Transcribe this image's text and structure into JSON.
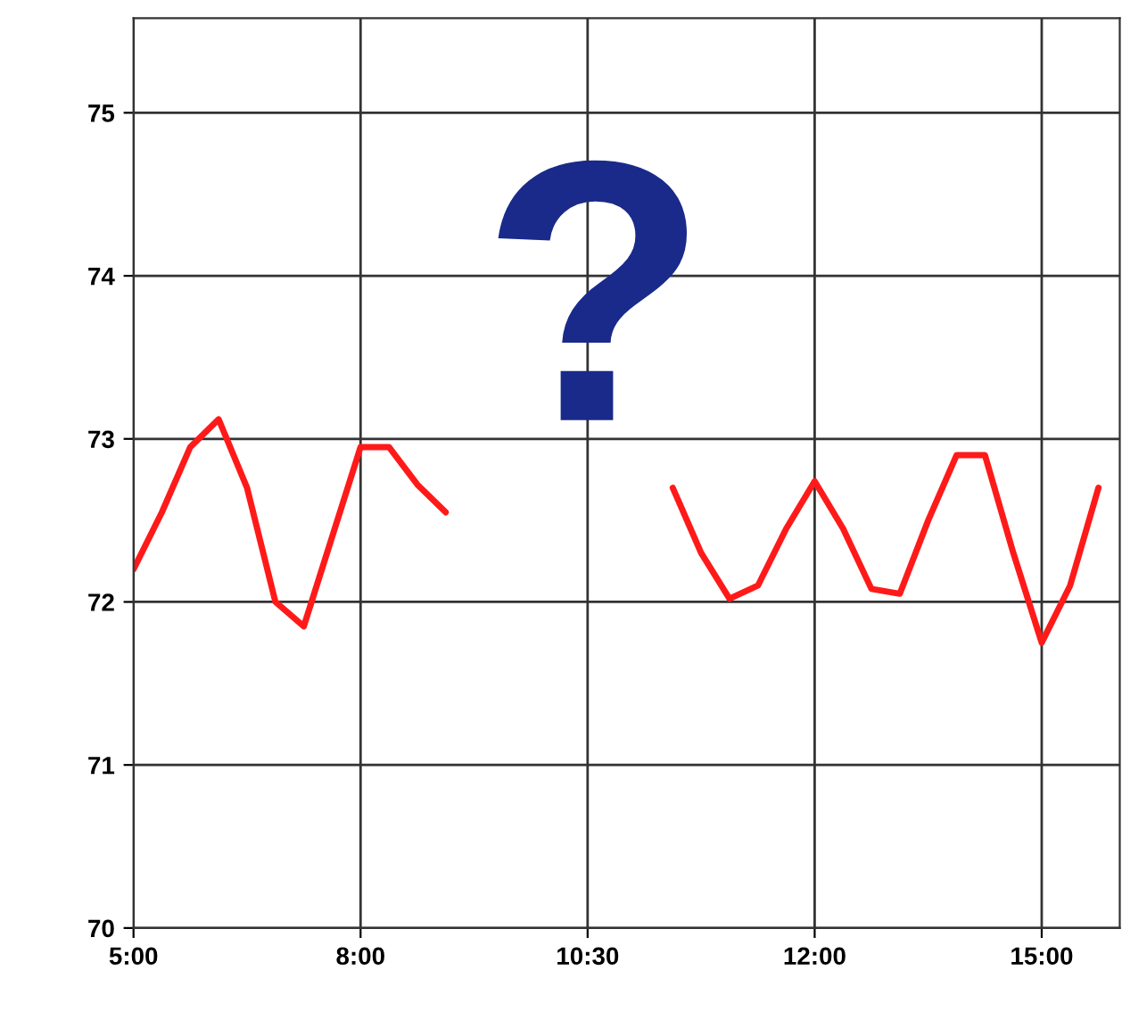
{
  "chart_data": {
    "type": "line",
    "categories": [
      "5:00",
      null,
      null,
      null,
      null,
      null,
      null,
      null,
      "8:00",
      null,
      null,
      null,
      null,
      null,
      null,
      null,
      "10:30",
      null,
      null,
      null,
      null,
      null,
      null,
      null,
      "12:00",
      null,
      null,
      null,
      null,
      null,
      null,
      null,
      "15:00",
      null,
      null
    ],
    "series": [
      {
        "color": "#ff1a1a",
        "values": [
          72.2,
          72.55,
          72.95,
          73.12,
          72.7,
          72.0,
          71.85,
          72.4,
          72.95,
          72.95,
          72.72,
          72.55,
          null,
          null,
          null,
          null,
          null,
          null,
          null,
          72.7,
          72.3,
          72.02,
          72.1,
          72.45,
          72.74,
          72.45,
          72.08,
          72.05,
          72.5,
          72.9,
          72.9,
          72.3,
          71.75,
          72.1,
          72.7
        ]
      }
    ],
    "ylim": [
      70,
      75.58
    ],
    "yticks": [
      70,
      71,
      72,
      73,
      74,
      75
    ],
    "grid": true,
    "line_style": "solid",
    "marker": "none",
    "annotations": [
      "?"
    ]
  }
}
